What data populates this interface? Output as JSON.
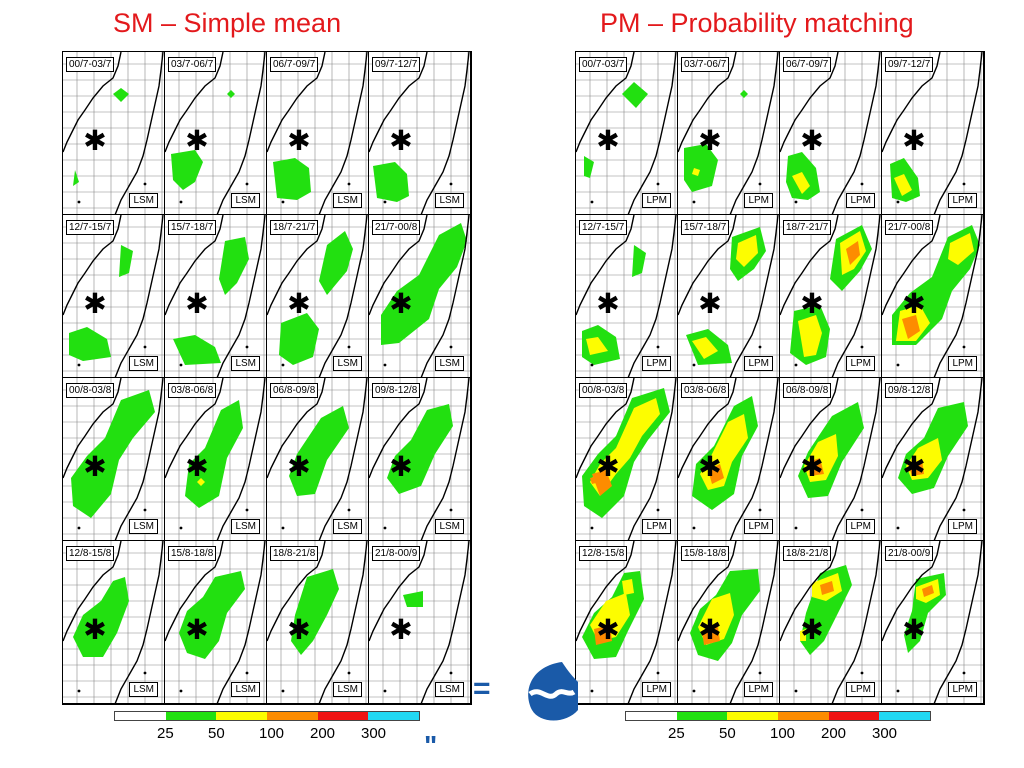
{
  "titles": {
    "sm": "SM – Simple mean",
    "pm": "PM – Probability matching"
  },
  "colors": {
    "title": "#e3191c",
    "bins": [
      "#ffffff",
      "#22e010",
      "#fdfd00",
      "#fd8c00",
      "#ef1212",
      "#22d8f2"
    ]
  },
  "colorbar_ticks": [
    "25",
    "50",
    "100",
    "200",
    "300"
  ],
  "panels": {
    "sm": {
      "method_label": "LSM",
      "dates": [
        "00/7-03/7",
        "03/7-06/7",
        "06/7-09/7",
        "09/7-12/7",
        "12/7-15/7",
        "15/7-18/7",
        "18/7-21/7",
        "21/7-00/8",
        "00/8-03/8",
        "03/8-06/8",
        "06/8-09/8",
        "09/8-12/8",
        "12/8-15/8",
        "15/8-18/8",
        "18/8-21/8",
        "21/8-00/9"
      ]
    },
    "pm": {
      "method_label": "LPM",
      "dates": [
        "00/7-03/7",
        "03/7-06/7",
        "06/7-09/7",
        "09/7-12/7",
        "12/7-15/7",
        "15/7-18/7",
        "18/7-21/7",
        "21/7-00/8",
        "00/8-03/8",
        "03/8-06/8",
        "06/8-09/8",
        "09/8-12/8",
        "12/8-15/8",
        "15/8-18/8",
        "18/8-21/8",
        "21/8-00/9"
      ]
    }
  },
  "decor": {
    "eq_glyph": "=",
    "quote_glyph": "\""
  }
}
